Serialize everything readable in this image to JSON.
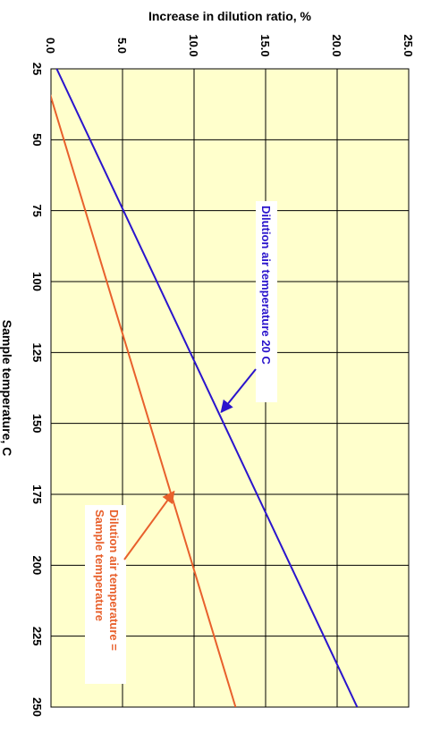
{
  "chart_data": {
    "type": "line",
    "orientation": "rotated-90-clockwise",
    "title": "",
    "xlabel": "Sample temperature, C",
    "ylabel": "Increase in dilution ratio, %",
    "xlim": [
      25,
      250
    ],
    "ylim": [
      0.0,
      25.0
    ],
    "x_ticks": [
      "25",
      "50",
      "75",
      "100",
      "125",
      "150",
      "175",
      "200",
      "225",
      "250"
    ],
    "y_ticks": [
      "0.0",
      "5.0",
      "10.0",
      "15.0",
      "20.0",
      "25.0"
    ],
    "grid": true,
    "series": [
      {
        "name": "Dilution air temperature 20 C",
        "color": "#2a14cc",
        "x": [
          25,
          250
        ],
        "y": [
          0.4,
          21.4
        ]
      },
      {
        "name": "Dilution air temperature = Sample temperature",
        "color": "#e8602c",
        "x": [
          25,
          250
        ],
        "y": [
          -0.6,
          12.9
        ]
      }
    ],
    "annotations": [
      {
        "series": 0,
        "lines": [
          "Dilution air temperature 20 C"
        ],
        "color": "#2a14cc",
        "arrow_to": {
          "x": 146,
          "y": 11.9
        }
      },
      {
        "series": 1,
        "lines": [
          "Dilution air temperature =",
          "Sample temperature"
        ],
        "color": "#e8602c",
        "arrow_to": {
          "x": 174,
          "y": 8.6
        }
      }
    ],
    "background_color": "#ffffcc",
    "grid_color": "#000000"
  }
}
